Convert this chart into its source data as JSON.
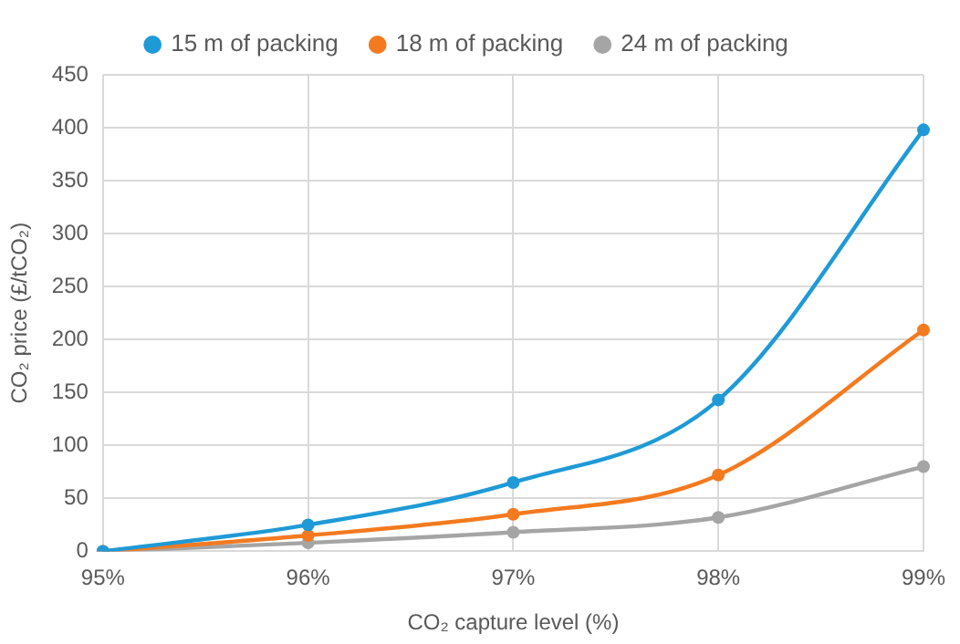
{
  "chart_data": {
    "type": "line",
    "xlabel": "CO₂ capture level (%)",
    "ylabel": "CO₂ price (£/tCO₂)",
    "categories": [
      "95%",
      "96%",
      "97%",
      "98%",
      "99%"
    ],
    "series": [
      {
        "name": "15 m of packing",
        "color": "#1f9ad6",
        "values": [
          0,
          25,
          65,
          143,
          398
        ]
      },
      {
        "name": "18 m of packing",
        "color": "#f47a20",
        "values": [
          0,
          15,
          35,
          72,
          209
        ]
      },
      {
        "name": "24 m of packing",
        "color": "#a5a5a5",
        "values": [
          0,
          8,
          18,
          32,
          80
        ]
      }
    ],
    "ylim": [
      0,
      450
    ],
    "yticks": [
      0,
      50,
      100,
      150,
      200,
      250,
      300,
      350,
      400,
      450
    ],
    "grid": true,
    "legend": "top",
    "marker": "circle",
    "line_style": "solid"
  }
}
